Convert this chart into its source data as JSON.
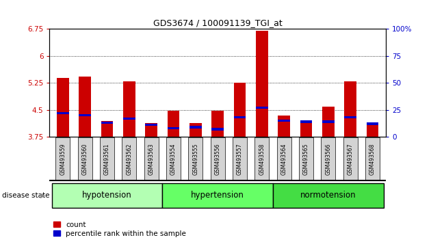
{
  "title": "GDS3674 / 100091139_TGI_at",
  "samples": [
    "GSM493559",
    "GSM493560",
    "GSM493561",
    "GSM493562",
    "GSM493563",
    "GSM493554",
    "GSM493555",
    "GSM493556",
    "GSM493557",
    "GSM493558",
    "GSM493564",
    "GSM493565",
    "GSM493566",
    "GSM493567",
    "GSM493568"
  ],
  "counts": [
    5.38,
    5.42,
    4.18,
    5.3,
    4.14,
    4.48,
    4.14,
    4.48,
    5.25,
    6.7,
    4.35,
    4.14,
    4.58,
    5.3,
    4.14
  ],
  "percentiles": [
    22,
    20,
    13,
    17,
    11,
    8,
    9,
    7,
    18,
    27,
    15,
    14,
    14,
    18,
    12
  ],
  "groups": [
    {
      "name": "hypotension",
      "start": 0,
      "end": 5,
      "color": "#b3ffb3"
    },
    {
      "name": "hypertension",
      "start": 5,
      "end": 10,
      "color": "#66ff66"
    },
    {
      "name": "normotension",
      "start": 10,
      "end": 15,
      "color": "#44dd44"
    }
  ],
  "ymin": 3.75,
  "ymax": 6.75,
  "yticks": [
    3.75,
    4.5,
    5.25,
    6.0,
    6.75
  ],
  "ytick_labels": [
    "3.75",
    "4.5",
    "5.25",
    "6",
    "6.75"
  ],
  "right_yticks": [
    0,
    25,
    50,
    75,
    100
  ],
  "right_ytick_labels": [
    "0",
    "25",
    "50",
    "75",
    "100%"
  ],
  "bar_color": "#cc0000",
  "percentile_color": "#0000cc",
  "bar_width": 0.55,
  "figure_bg": "#ffffff",
  "tick_label_bg": "#d3d3d3"
}
